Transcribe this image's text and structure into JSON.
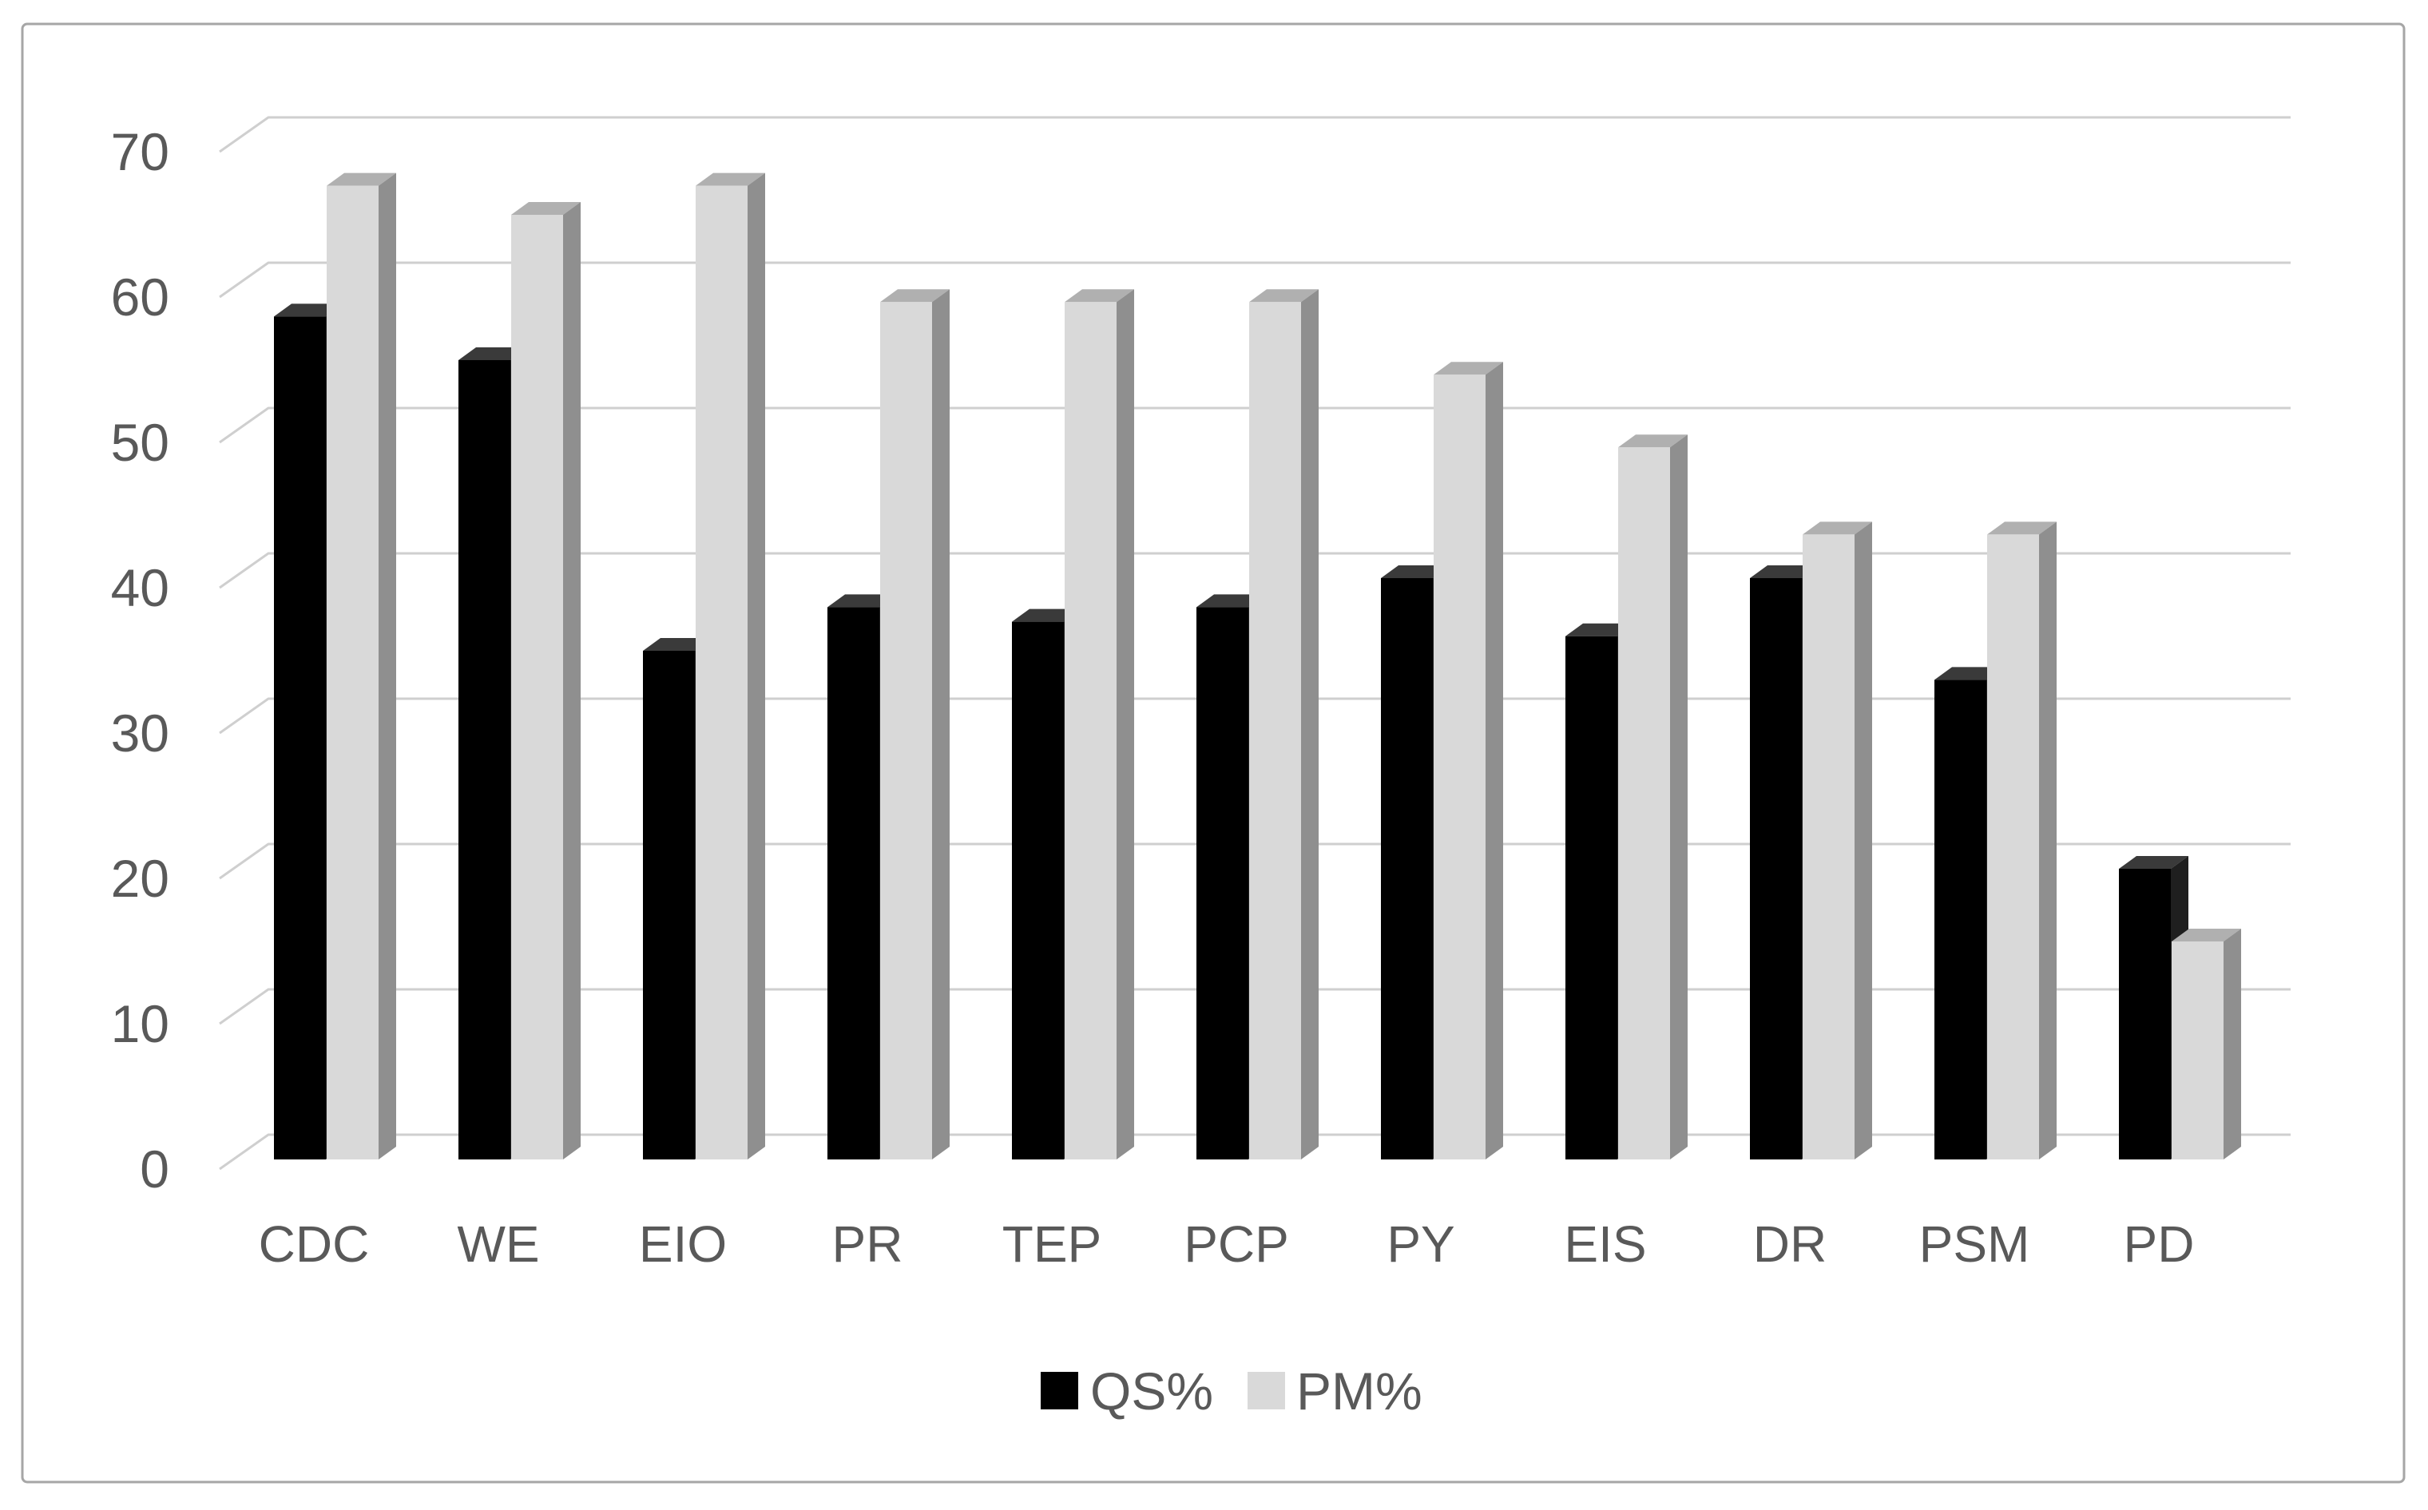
{
  "chart_data": {
    "type": "bar",
    "subtype": "3d-clustered-column",
    "title": "",
    "xlabel": "",
    "ylabel": "",
    "categories": [
      "CDC",
      "WE",
      "EIO",
      "PR",
      "TEP",
      "PCP",
      "PY",
      "EIS",
      "DR",
      "PSM",
      "PD"
    ],
    "series": [
      {
        "name": "QS%",
        "values": [
          58,
          55,
          35,
          38,
          37,
          38,
          40,
          36,
          40,
          33,
          20
        ],
        "front_color": "#000000",
        "top_color": "#3a3a3a",
        "side_color": "#1f1f1f"
      },
      {
        "name": "PM%",
        "values": [
          67,
          65,
          67,
          59,
          59,
          59,
          54,
          49,
          43,
          43,
          15
        ],
        "front_color": "#d9d9d9",
        "top_color": "#b0b0b0",
        "side_color": "#8f8f8f"
      }
    ],
    "ylim": [
      0,
      70
    ],
    "yticks": [
      0,
      10,
      20,
      30,
      40,
      50,
      60,
      70
    ],
    "grid": true,
    "legend_position": "bottom-center",
    "colors": {
      "gridline": "#cfcfcf",
      "axis_text": "#595959",
      "category_text": "#595959",
      "legend_text": "#595959",
      "chart_border": "#a6a6a6",
      "background": "#ffffff"
    }
  }
}
